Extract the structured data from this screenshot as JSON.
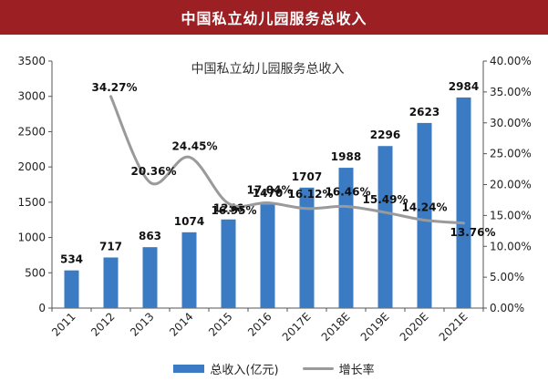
{
  "header": {
    "title": "中国私立幼儿园服务总收入"
  },
  "chart_data": {
    "type": "bar",
    "title": "中国私立幼儿园服务总收入",
    "categories": [
      "2011",
      "2012",
      "2013",
      "2014",
      "2015",
      "2016",
      "2017E",
      "2018E",
      "2019E",
      "2020E",
      "2021E"
    ],
    "series": [
      {
        "name": "总收入(亿元)",
        "type": "bar",
        "axis": "left",
        "values": [
          534,
          717,
          863,
          1074,
          1256,
          1470,
          1707,
          1988,
          2296,
          2623,
          2984
        ]
      },
      {
        "name": "增长率",
        "type": "line",
        "axis": "right",
        "values": [
          null,
          34.27,
          20.36,
          24.45,
          16.95,
          17.04,
          16.12,
          16.46,
          15.49,
          14.24,
          13.76
        ],
        "labels": [
          null,
          "34.27%",
          "20.36%",
          "24.45%",
          "16.95%",
          "17.04%",
          "16.12%",
          "16.46%",
          "15.49%",
          "14.24%",
          "13.76%"
        ]
      }
    ],
    "ylim": [
      0,
      3500
    ],
    "yticks": [
      "0",
      "500",
      "1000",
      "1500",
      "2000",
      "2500",
      "3000",
      "3500"
    ],
    "y2lim": [
      0,
      40
    ],
    "y2ticks": [
      "0.00%",
      "5.00%",
      "10.00%",
      "15.00%",
      "20.00%",
      "25.00%",
      "30.00%",
      "35.00%",
      "40.00%"
    ],
    "legend": "bottom",
    "grid": false,
    "colors": {
      "bar": "#3a7bc4",
      "line": "#9a9a9a",
      "header": "#9b1f23"
    }
  }
}
